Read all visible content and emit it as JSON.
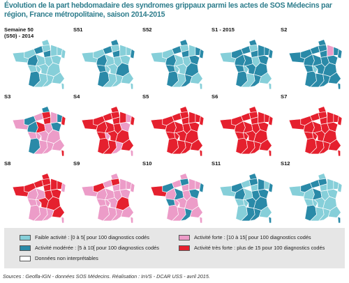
{
  "title": "Évolution de la part hebdomadaire des syndromes grippaux parmi les actes de SOS Médecins par région, France métropolitaine, saison 2014-2015",
  "colors": {
    "faible": "#86cfd9",
    "moderee": "#2a8aa8",
    "forte": "#ec9cc8",
    "tres_forte": "#e5202e",
    "non_interpretable": "#ffffff"
  },
  "panels": [
    {
      "label": "Semaine 50\n(S50) - 2014",
      "pattern": [
        "faible",
        "moderee",
        "faible",
        "faible",
        "moderee",
        "faible",
        "faible",
        "faible",
        "faible",
        "moderee",
        "faible",
        "faible",
        "faible",
        "faible",
        "faible",
        "faible",
        "faible",
        "moderee",
        "faible",
        "faible",
        "faible",
        "faible"
      ]
    },
    {
      "label": "S51",
      "pattern": [
        "faible",
        "moderee",
        "moderee",
        "faible",
        "moderee",
        "faible",
        "faible",
        "moderee",
        "faible",
        "moderee",
        "faible",
        "faible",
        "faible",
        "moderee",
        "faible",
        "faible",
        "moderee",
        "moderee",
        "faible",
        "faible",
        "faible",
        "faible"
      ]
    },
    {
      "label": "S52",
      "pattern": [
        "faible",
        "moderee",
        "moderee",
        "faible",
        "moderee",
        "faible",
        "moderee",
        "moderee",
        "faible",
        "moderee",
        "faible",
        "faible",
        "moderee",
        "moderee",
        "faible",
        "faible",
        "moderee",
        "moderee",
        "faible",
        "moderee",
        "faible",
        "faible"
      ]
    },
    {
      "label": "S1 - 2015",
      "pattern": [
        "moderee",
        "moderee",
        "moderee",
        "faible",
        "moderee",
        "moderee",
        "moderee",
        "moderee",
        "faible",
        "moderee",
        "moderee",
        "faible",
        "moderee",
        "moderee",
        "faible",
        "moderee",
        "moderee",
        "moderee",
        "faible",
        "moderee",
        "faible",
        "faible"
      ]
    },
    {
      "label": "S2",
      "pattern": [
        "moderee",
        "moderee",
        "moderee",
        "moderee",
        "moderee",
        "forte",
        "moderee",
        "moderee",
        "moderee",
        "moderee",
        "moderee",
        "moderee",
        "moderee",
        "moderee",
        "faible",
        "moderee",
        "moderee",
        "moderee",
        "moderee",
        "moderee",
        "moderee",
        "moderee"
      ]
    },
    {
      "label": "S3",
      "pattern": [
        "moderee",
        "forte",
        "moderee",
        "tres_forte",
        "tres_forte",
        "forte",
        "moderee",
        "tres_forte",
        "forte",
        "moderee",
        "tres_forte",
        "forte",
        "moderee",
        "forte",
        "forte",
        "forte",
        "forte",
        "moderee",
        "forte",
        "forte",
        "forte",
        "tres_forte"
      ]
    },
    {
      "label": "S4",
      "pattern": [
        "tres_forte",
        "tres_forte",
        "tres_forte",
        "tres_forte",
        "tres_forte",
        "tres_forte",
        "forte",
        "tres_forte",
        "tres_forte",
        "tres_forte",
        "tres_forte",
        "tres_forte",
        "forte",
        "tres_forte",
        "forte",
        "tres_forte",
        "tres_forte",
        "tres_forte",
        "tres_forte",
        "forte",
        "tres_forte",
        "forte"
      ]
    },
    {
      "label": "S5",
      "pattern": [
        "tres_forte",
        "tres_forte",
        "tres_forte",
        "tres_forte",
        "tres_forte",
        "tres_forte",
        "tres_forte",
        "tres_forte",
        "tres_forte",
        "tres_forte",
        "tres_forte",
        "tres_forte",
        "tres_forte",
        "tres_forte",
        "tres_forte",
        "tres_forte",
        "tres_forte",
        "tres_forte",
        "tres_forte",
        "tres_forte",
        "tres_forte",
        "tres_forte"
      ]
    },
    {
      "label": "S6",
      "pattern": [
        "tres_forte",
        "tres_forte",
        "tres_forte",
        "tres_forte",
        "tres_forte",
        "tres_forte",
        "tres_forte",
        "tres_forte",
        "tres_forte",
        "tres_forte",
        "tres_forte",
        "tres_forte",
        "tres_forte",
        "tres_forte",
        "tres_forte",
        "tres_forte",
        "tres_forte",
        "tres_forte",
        "tres_forte",
        "tres_forte",
        "tres_forte",
        "tres_forte"
      ]
    },
    {
      "label": "S7",
      "pattern": [
        "tres_forte",
        "tres_forte",
        "tres_forte",
        "tres_forte",
        "tres_forte",
        "tres_forte",
        "tres_forte",
        "tres_forte",
        "tres_forte",
        "tres_forte",
        "tres_forte",
        "tres_forte",
        "tres_forte",
        "tres_forte",
        "tres_forte",
        "tres_forte",
        "tres_forte",
        "tres_forte",
        "tres_forte",
        "tres_forte",
        "tres_forte",
        "tres_forte"
      ]
    },
    {
      "label": "S8",
      "pattern": [
        "tres_forte",
        "tres_forte",
        "tres_forte",
        "tres_forte",
        "tres_forte",
        "tres_forte",
        "tres_forte",
        "forte",
        "tres_forte",
        "forte",
        "forte",
        "tres_forte",
        "tres_forte",
        "forte",
        "forte",
        "tres_forte",
        "tres_forte",
        "forte",
        "forte",
        "forte",
        "tres_forte",
        "forte"
      ]
    },
    {
      "label": "S9",
      "pattern": [
        "tres_forte",
        "forte",
        "forte",
        "tres_forte",
        "forte",
        "forte",
        "forte",
        "forte",
        "forte",
        "forte",
        "forte",
        "forte",
        "forte",
        "forte",
        "forte",
        "forte",
        "tres_forte",
        "forte",
        "forte",
        "forte",
        "forte",
        "forte"
      ]
    },
    {
      "label": "S10",
      "pattern": [
        "moderee",
        "forte",
        "forte",
        "moderee",
        "forte",
        "forte",
        "forte",
        "moderee",
        "tres_forte",
        "forte",
        "moderee",
        "forte",
        "moderee",
        "moderee",
        "forte",
        "forte",
        "forte",
        "forte",
        "forte",
        "moderee",
        "forte",
        "forte"
      ]
    },
    {
      "label": "S11",
      "pattern": [
        "moderee",
        "faible",
        "moderee",
        "moderee",
        "faible",
        "moderee",
        "faible",
        "moderee",
        "faible",
        "moderee",
        "faible",
        "moderee",
        "moderee",
        "faible",
        "faible",
        "moderee",
        "moderee",
        "faible",
        "moderee",
        "moderee",
        "faible",
        "moderee"
      ]
    },
    {
      "label": "S12",
      "pattern": [
        "moderee",
        "moderee",
        "faible",
        "moderee",
        "faible",
        "faible",
        "faible",
        "faible",
        "faible",
        "faible",
        "moderee",
        "faible",
        "faible",
        "faible",
        "faible",
        "faible",
        "faible",
        "moderee",
        "faible",
        "faible",
        "faible",
        "moderee"
      ]
    }
  ],
  "legend": [
    {
      "key": "faible",
      "label": "Faible activité : [0 à 5[ pour 100 diagnostics codés"
    },
    {
      "key": "moderee",
      "label": "Activité modérée : [5 à 10[ pour 100 diagnostics codés"
    },
    {
      "key": "non_interpretable",
      "label": "Données non interprétables"
    },
    {
      "key": "forte",
      "label": "Activité forte : [10 à 15[ pour 100 diagnostics codés"
    },
    {
      "key": "tres_forte",
      "label": "Activité très forte : plus de 15 pour 100 diagnostics codés"
    }
  ],
  "source": "Sources : Geofla-IGN - données SOS Médecins. Réalisation : InVS - DCAR USS - avril 2015."
}
